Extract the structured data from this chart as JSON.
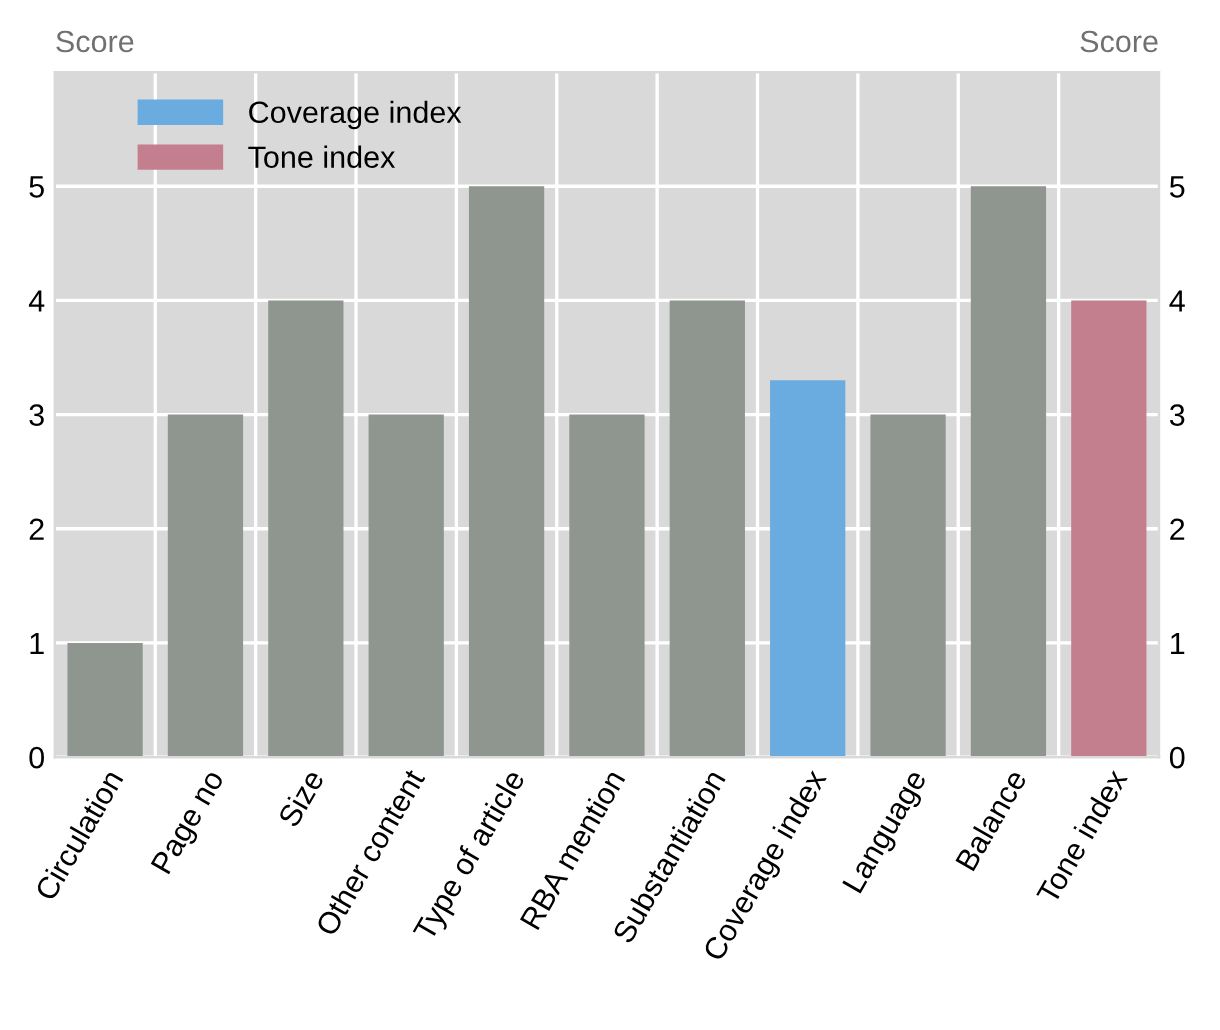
{
  "chart_data": {
    "type": "bar",
    "categories": [
      "Circulation",
      "Page no",
      "Size",
      "Other content",
      "Type of article",
      "RBA mention",
      "Substantiation",
      "Coverage index",
      "Language",
      "Balance",
      "Tone index"
    ],
    "series": [
      {
        "color": "#8f9690",
        "values": [
          1,
          3,
          4,
          3,
          5,
          3,
          4,
          null,
          3,
          5,
          null
        ]
      },
      {
        "name": "Coverage index",
        "color": "#6aabe0",
        "values": [
          null,
          null,
          null,
          null,
          null,
          null,
          null,
          3.3,
          null,
          null,
          null
        ]
      },
      {
        "name": "Tone index",
        "color": "#c47f8f",
        "values": [
          null,
          null,
          null,
          null,
          null,
          null,
          null,
          null,
          null,
          null,
          4
        ]
      }
    ],
    "ylabel": "Score",
    "y2label": "Score",
    "ylim": [
      0,
      6
    ],
    "yticks": [
      0,
      1,
      2,
      3,
      4,
      5
    ],
    "y2lim": [
      0,
      6
    ],
    "y2ticks": [
      0,
      1,
      2,
      3,
      4,
      5
    ],
    "grid": true,
    "legend": "top left"
  }
}
